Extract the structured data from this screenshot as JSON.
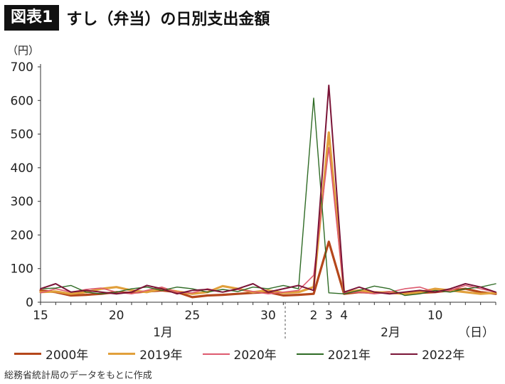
{
  "header": {
    "badge": "図表1",
    "title": "すし（弁当）の日別支出金額"
  },
  "source_note": "総務省統計局のデータをもとに作成",
  "chart_data": {
    "type": "line",
    "title": "すし（弁当）の日別支出金額",
    "ylabel": "（円）",
    "xunit_label": "（日）",
    "ylim": [
      0,
      700
    ],
    "yticks": [
      0,
      100,
      200,
      300,
      400,
      500,
      600,
      700
    ],
    "month_labels": [
      "1月",
      "2月"
    ],
    "x": [
      "1/15",
      "1/16",
      "1/17",
      "1/18",
      "1/19",
      "1/20",
      "1/21",
      "1/22",
      "1/23",
      "1/24",
      "1/25",
      "1/26",
      "1/27",
      "1/28",
      "1/29",
      "1/30",
      "1/31",
      "2/1",
      "2/2",
      "2/3",
      "2/4",
      "2/5",
      "2/6",
      "2/7",
      "2/8",
      "2/9",
      "2/10",
      "2/11",
      "2/12",
      "2/13",
      "2/14"
    ],
    "xtick_labels": [
      {
        "index": 0,
        "label": "15"
      },
      {
        "index": 5,
        "label": "20"
      },
      {
        "index": 10,
        "label": "25"
      },
      {
        "index": 15,
        "label": "30"
      },
      {
        "index": 18,
        "label": "2"
      },
      {
        "index": 19,
        "label": "3"
      },
      {
        "index": 20,
        "label": "4"
      },
      {
        "index": 26,
        "label": "10"
      }
    ],
    "divider_after_index": 16,
    "series": [
      {
        "name": "2000年",
        "color": "#b5471b",
        "width": 3.2,
        "values": [
          35,
          30,
          20,
          22,
          25,
          30,
          28,
          32,
          35,
          30,
          15,
          20,
          22,
          25,
          28,
          30,
          20,
          22,
          25,
          180,
          25,
          30,
          28,
          30,
          25,
          28,
          30,
          35,
          40,
          30,
          25
        ]
      },
      {
        "name": "2019年",
        "color": "#e1a03c",
        "width": 3.2,
        "values": [
          30,
          32,
          25,
          30,
          40,
          45,
          35,
          30,
          40,
          32,
          25,
          30,
          48,
          40,
          30,
          35,
          28,
          30,
          45,
          505,
          30,
          35,
          30,
          28,
          25,
          30,
          40,
          35,
          30,
          25,
          28
        ]
      },
      {
        "name": "2020年",
        "color": "#dd5a6f",
        "width": 1.6,
        "values": [
          28,
          40,
          30,
          38,
          42,
          30,
          25,
          35,
          45,
          30,
          28,
          40,
          30,
          38,
          32,
          25,
          30,
          35,
          80,
          460,
          28,
          30,
          25,
          30,
          40,
          45,
          30,
          35,
          50,
          40,
          30
        ]
      },
      {
        "name": "2021年",
        "color": "#2f6b25",
        "width": 1.4,
        "values": [
          40,
          42,
          50,
          30,
          25,
          30,
          40,
          45,
          35,
          45,
          40,
          30,
          38,
          32,
          45,
          40,
          50,
          40,
          607,
          28,
          25,
          35,
          48,
          40,
          20,
          25,
          35,
          30,
          40,
          45,
          55
        ]
      },
      {
        "name": "2022年",
        "color": "#7a1437",
        "width": 2.0,
        "values": [
          40,
          55,
          30,
          35,
          30,
          25,
          30,
          50,
          40,
          25,
          35,
          38,
          30,
          40,
          55,
          30,
          40,
          50,
          35,
          645,
          30,
          45,
          30,
          25,
          30,
          35,
          30,
          40,
          55,
          45,
          30
        ]
      }
    ]
  }
}
